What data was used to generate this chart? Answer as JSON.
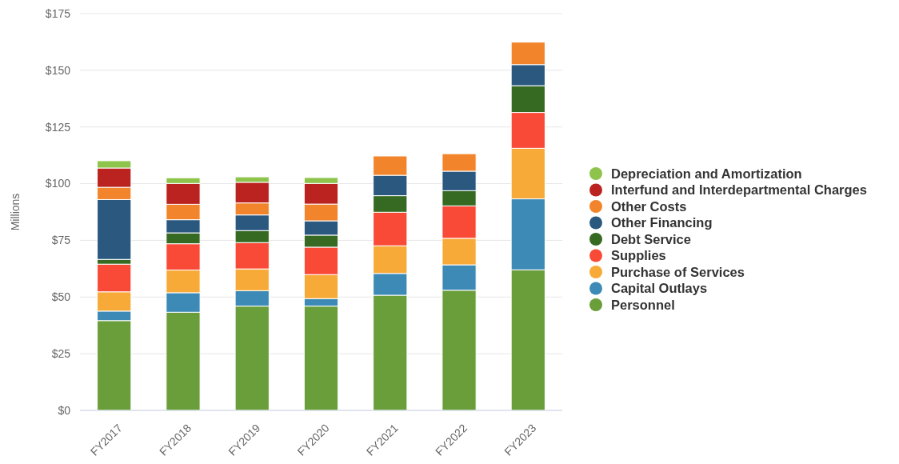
{
  "chart_data": {
    "type": "bar",
    "stacked": true,
    "ylabel": "Millions",
    "categories": [
      "FY2017",
      "FY2018",
      "FY2019",
      "FY2020",
      "FY2021",
      "FY2022",
      "FY2023"
    ],
    "series": [
      {
        "name": "Personnel",
        "color": "#6a9e3a",
        "values": [
          39.6,
          43.3,
          46.0,
          46.0,
          50.8,
          53.0,
          62.0
        ]
      },
      {
        "name": "Capital Outlays",
        "color": "#3d8ab6",
        "values": [
          4.2,
          8.6,
          6.8,
          3.3,
          9.6,
          11.2,
          31.3
        ]
      },
      {
        "name": "Purchase of Services",
        "color": "#f7aa38",
        "values": [
          8.5,
          10.0,
          9.6,
          10.6,
          12.2,
          11.7,
          22.3
        ]
      },
      {
        "name": "Supplies",
        "color": "#f94a37",
        "values": [
          12.2,
          11.6,
          11.6,
          12.1,
          14.8,
          14.3,
          15.8
        ]
      },
      {
        "name": "Debt Service",
        "color": "#366a22",
        "values": [
          2.1,
          4.8,
          5.3,
          5.3,
          7.3,
          6.7,
          11.8
        ]
      },
      {
        "name": "Other Financing",
        "color": "#2b587e",
        "values": [
          26.4,
          5.8,
          6.9,
          6.3,
          9.0,
          8.6,
          9.3
        ]
      },
      {
        "name": "Other Costs",
        "color": "#f2842b",
        "values": [
          5.4,
          6.8,
          5.3,
          7.4,
          8.5,
          7.7,
          9.9
        ]
      },
      {
        "name": "Interfund and Interdepartmental Charges",
        "color": "#ba231f",
        "values": [
          8.5,
          9.2,
          9.1,
          9.1,
          null,
          null,
          null
        ]
      },
      {
        "name": "Depreciation and Amortization",
        "color": "#8fc44c",
        "values": [
          3.2,
          2.5,
          2.4,
          2.6,
          null,
          null,
          null
        ]
      }
    ],
    "ylim": [
      0,
      175
    ],
    "yticks": [
      {
        "value": 0,
        "label": "$0"
      },
      {
        "value": 25,
        "label": "$25"
      },
      {
        "value": 50,
        "label": "$50"
      },
      {
        "value": 75,
        "label": "$75"
      },
      {
        "value": 100,
        "label": "$100"
      },
      {
        "value": 125,
        "label": "$125"
      },
      {
        "value": 150,
        "label": "$150"
      },
      {
        "value": 175,
        "label": "$175"
      }
    ],
    "grid": "y",
    "legend": "right"
  }
}
